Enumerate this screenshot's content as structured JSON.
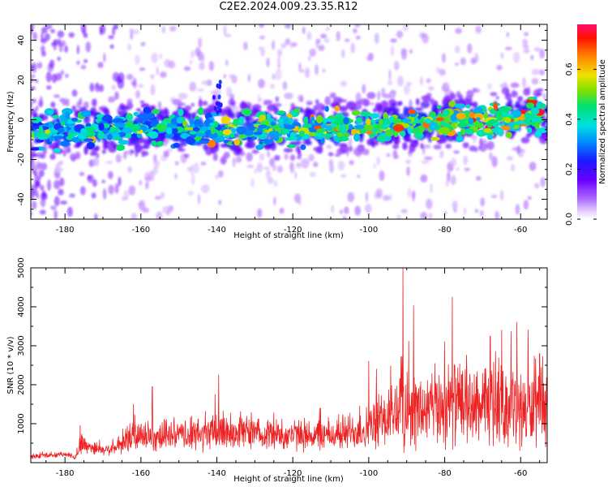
{
  "title": "C2E2.2024.009.23.35.R12",
  "chart_data": [
    {
      "type": "heatmap",
      "xlabel": "Height of straight line (km)",
      "ylabel": "Frequency (Hz)",
      "xlim": [
        -189,
        -53
      ],
      "ylim": [
        -50,
        48
      ],
      "xticks": [
        -180,
        -160,
        -140,
        -120,
        -100,
        -80,
        -60
      ],
      "yticks": [
        -40,
        -20,
        0,
        20,
        40
      ],
      "colorbar": {
        "label": "Normalized spectral amplitude",
        "range": [
          0,
          0.78
        ],
        "ticks": [
          0.0,
          0.2,
          0.4,
          0.6
        ],
        "colormap": [
          "#ffffff",
          "#e6d0ff",
          "#b070ff",
          "#6a00ff",
          "#1a1aff",
          "#0090ff",
          "#00e0e0",
          "#00e070",
          "#80e000",
          "#f0e000",
          "#ff8000",
          "#ff1000",
          "#ff1070"
        ]
      },
      "ridge": {
        "description_free_values": true,
        "center_freq_at_x": [
          [
            -189,
            -6
          ],
          [
            -160,
            -4
          ],
          [
            -120,
            -5
          ],
          [
            -100,
            -3
          ],
          [
            -80,
            -1
          ],
          [
            -60,
            1
          ],
          [
            -53,
            3
          ]
        ],
        "halfwidth_hz": 7,
        "peak_amplitude": 0.75
      },
      "grid": false
    },
    {
      "type": "line",
      "xlabel": "Height of straight line (km)",
      "ylabel": "SNR (10 * v/v)",
      "xlim": [
        -189,
        -53
      ],
      "ylim": [
        0,
        5000
      ],
      "xticks": [
        -180,
        -160,
        -140,
        -120,
        -100,
        -80,
        -60
      ],
      "yticks": [
        1000,
        2000,
        3000,
        4000,
        5000
      ],
      "color": "#ee2222",
      "envelope": {
        "x": [
          -189,
          -180,
          -177,
          -176,
          -170,
          -165,
          -163,
          -150,
          -142,
          -140,
          -130,
          -120,
          -110,
          -100,
          -95,
          -91,
          -90,
          -85,
          -80,
          -78,
          -75,
          -70,
          -65,
          -60,
          -55,
          -53
        ],
        "baseline": [
          150,
          200,
          150,
          450,
          300,
          400,
          600,
          650,
          650,
          750,
          700,
          650,
          650,
          800,
          1050,
          1300,
          1200,
          1200,
          1300,
          1400,
          1300,
          1300,
          1300,
          1250,
          1200,
          1200
        ],
        "amplitude": [
          100,
          100,
          150,
          450,
          200,
          350,
          700,
          550,
          800,
          900,
          600,
          650,
          650,
          900,
          1300,
          1800,
          1800,
          1500,
          1700,
          1800,
          1600,
          1500,
          1600,
          1600,
          1500,
          1400
        ]
      },
      "peaks": [
        [
          -91,
          5000
        ],
        [
          -78,
          4250
        ],
        [
          -80,
          3100
        ],
        [
          -65,
          3400
        ],
        [
          -68,
          3250
        ],
        [
          -61,
          3600
        ],
        [
          -58,
          3400
        ],
        [
          -55,
          2800
        ],
        [
          -139.5,
          2250
        ],
        [
          -157,
          1950
        ],
        [
          -162,
          1500
        ],
        [
          -176,
          950
        ],
        [
          -100,
          2600
        ],
        [
          -98,
          2400
        ]
      ],
      "grid": false
    }
  ]
}
